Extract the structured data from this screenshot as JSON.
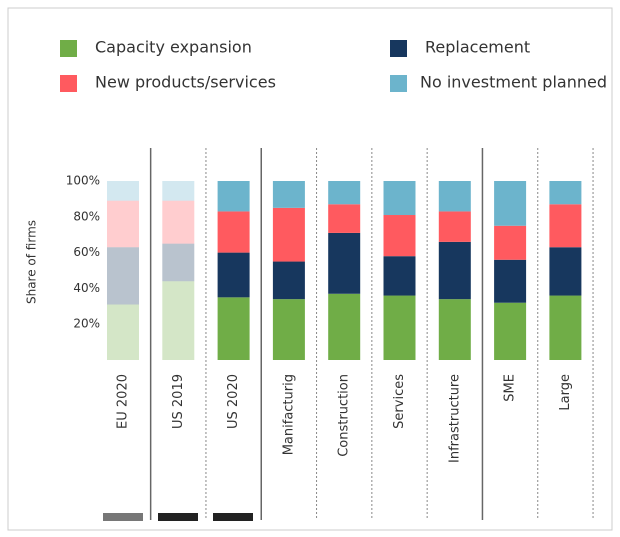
{
  "chart_data": {
    "type": "stacked_bar",
    "categories": [
      "EU 2020",
      "US 2019",
      "US 2020",
      "Manifacturig",
      "Construction",
      "Services",
      "Infrastructure",
      "SME",
      "Large"
    ],
    "category_opacity": [
      0.3,
      0.3,
      1,
      1,
      1,
      1,
      1,
      1,
      1
    ],
    "series": [
      {
        "name": "Capacity expansion",
        "color": "#70ad47",
        "values": [
          31,
          44,
          35,
          34,
          37,
          36,
          34,
          32,
          36
        ]
      },
      {
        "name": "Replacement",
        "color": "#17375e",
        "values": [
          32,
          21,
          25,
          21,
          34,
          22,
          32,
          24,
          27
        ]
      },
      {
        "name": "New products/services",
        "color": "#ff5a5f",
        "values": [
          26,
          24,
          23,
          30,
          16,
          23,
          17,
          19,
          24
        ]
      },
      {
        "name": "No investment planned",
        "color": "#6cb4cc",
        "values": [
          11,
          11,
          17,
          15,
          13,
          19,
          17,
          25,
          13
        ]
      }
    ],
    "y_label": "Share of firms",
    "ylim": [
      0,
      100
    ],
    "yticks": [
      {
        "value": 20,
        "label": "20%"
      },
      {
        "value": 40,
        "label": "40%"
      },
      {
        "value": 60,
        "label": "60%"
      },
      {
        "value": 80,
        "label": "80%"
      },
      {
        "value": 100,
        "label": "100%"
      }
    ]
  }
}
